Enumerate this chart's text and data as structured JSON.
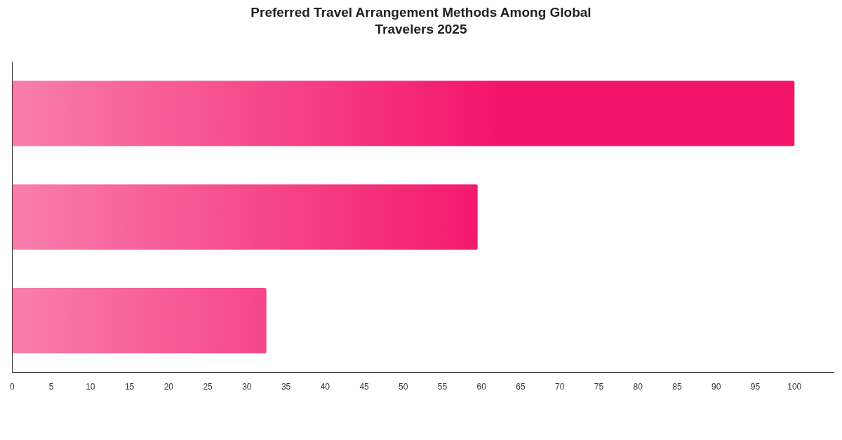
{
  "chart_data": {
    "type": "bar",
    "orientation": "horizontal",
    "title": "Preferred Travel Arrangement Methods Among Global Travelers 2025",
    "categories": [
      null,
      null,
      null
    ],
    "values": [
      100,
      59.5,
      32.5
    ],
    "color": "#f3146b",
    "xlim": [
      0,
      105
    ],
    "xticks": [
      0,
      5,
      10,
      15,
      20,
      25,
      30,
      35,
      40,
      45,
      50,
      55,
      60,
      65,
      70,
      75,
      80,
      85,
      90,
      95,
      100
    ],
    "grid": false,
    "legend": false
  }
}
